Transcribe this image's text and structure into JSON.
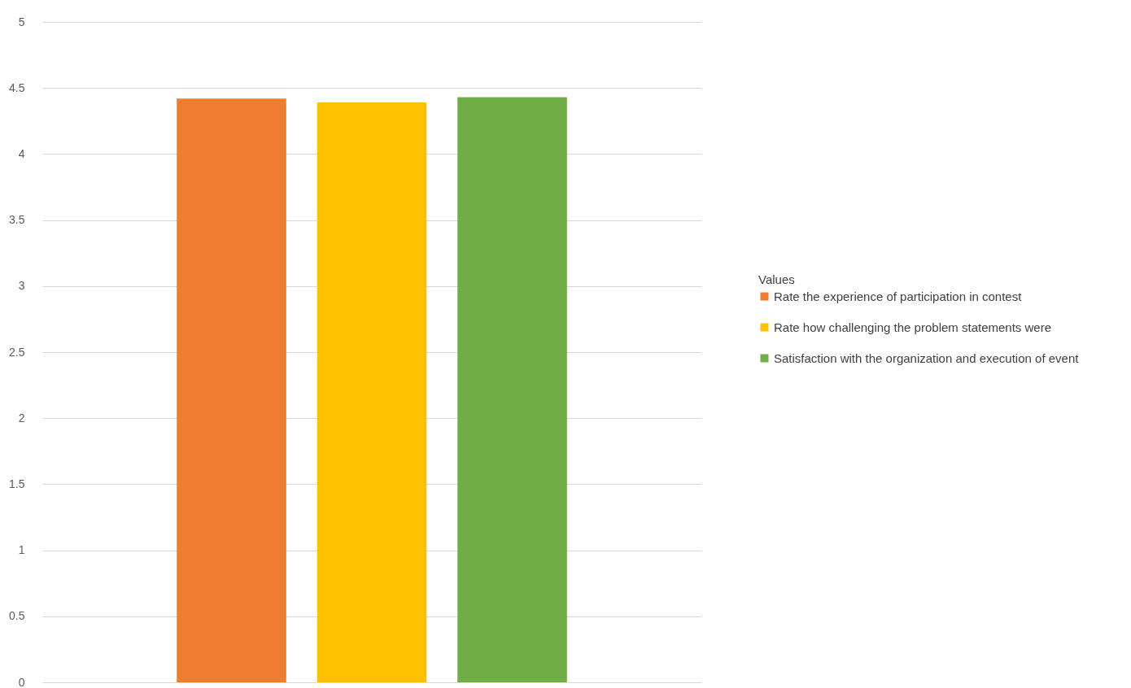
{
  "chart_data": {
    "type": "bar",
    "categories": [
      null
    ],
    "series": [
      {
        "name": "Rate the experience of participation in contest",
        "color": "#ed7d31",
        "values": [
          4.42
        ]
      },
      {
        "name": "Rate how challenging the problem statements were",
        "color": "#ffc000",
        "values": [
          4.39
        ]
      },
      {
        "name": "Satisfaction with the organization and execution of event",
        "color": "#70ad47",
        "values": [
          4.43
        ]
      }
    ],
    "legend_title": "Values",
    "legend": "right",
    "grid": "y",
    "ylim": [
      0,
      5
    ],
    "yticks": [
      0,
      0.5,
      1,
      1.5,
      2,
      2.5,
      3,
      3.5,
      4,
      4.5,
      5
    ]
  }
}
